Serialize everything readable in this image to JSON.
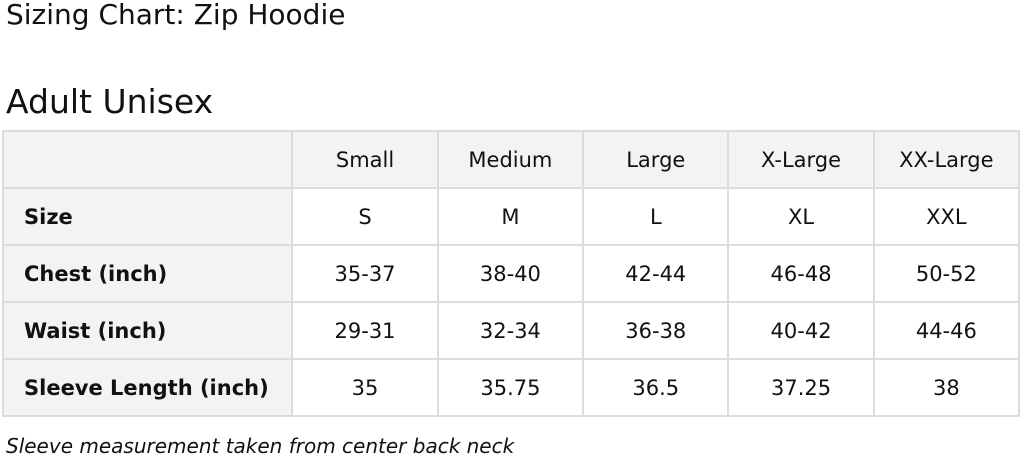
{
  "title": "Sizing Chart: Zip Hoodie",
  "subtitle": "Adult Unisex",
  "table": {
    "columns": [
      "",
      "Small",
      "Medium",
      "Large",
      "X-Large",
      "XX-Large"
    ],
    "rows": [
      {
        "label": "Size",
        "cells": [
          "S",
          "M",
          "L",
          "XL",
          "XXL"
        ]
      },
      {
        "label": "Chest (inch)",
        "cells": [
          "35-37",
          "38-40",
          "42-44",
          "46-48",
          "50-52"
        ]
      },
      {
        "label": "Waist (inch)",
        "cells": [
          "29-31",
          "32-34",
          "36-38",
          "40-42",
          "44-46"
        ]
      },
      {
        "label": "Sleeve Length (inch)",
        "cells": [
          "35",
          "35.75",
          "36.5",
          "37.25",
          "38"
        ]
      }
    ]
  },
  "note": "Sleeve measurement taken from center back neck"
}
